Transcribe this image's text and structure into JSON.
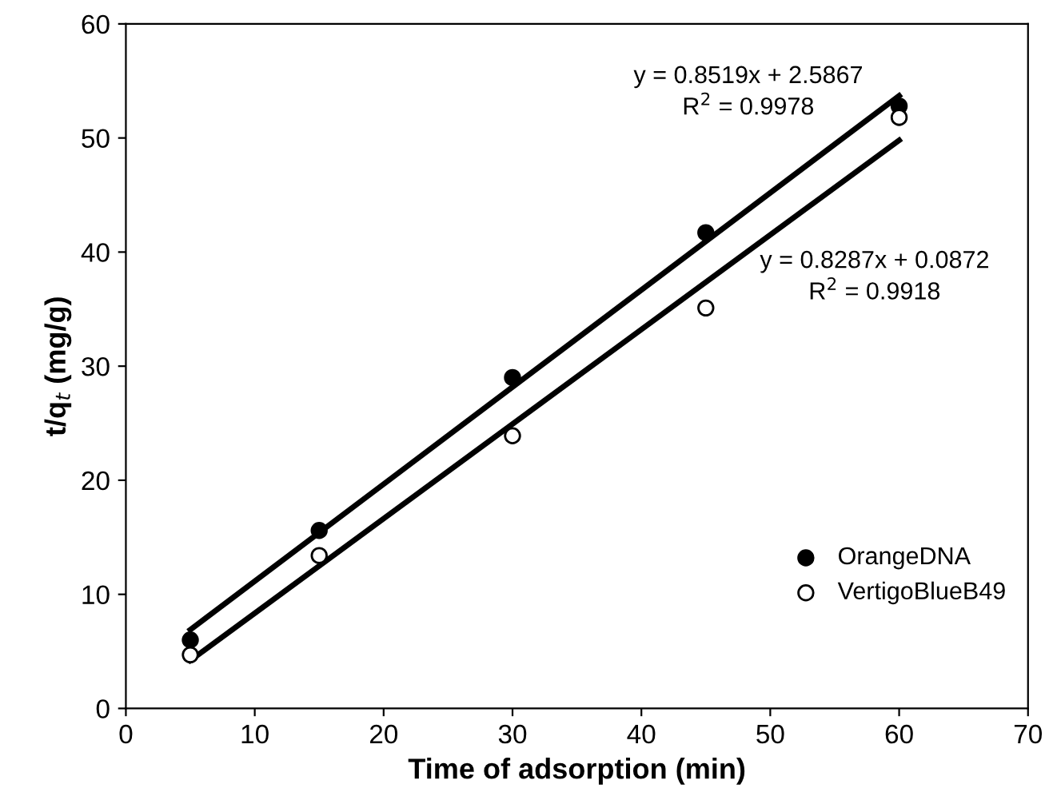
{
  "chart_data": {
    "type": "scatter",
    "xlabel": "Time of adsorption (min)",
    "ylabel": "t/q$_{t}$ (mg/g)",
    "xlim": [
      0,
      70
    ],
    "ylim": [
      0,
      60
    ],
    "xticks": [
      0,
      10,
      20,
      30,
      40,
      50,
      60,
      70
    ],
    "yticks": [
      0,
      10,
      20,
      30,
      40,
      50,
      60
    ],
    "grid": false,
    "legend": "bottom right",
    "marker": "circle",
    "series": [
      {
        "name": "OrangeDNA",
        "color": "#000000",
        "x": [
          5,
          15,
          30,
          45,
          60
        ],
        "values": [
          6.0,
          15.6,
          29.0,
          41.7,
          52.8
        ]
      },
      {
        "name": "VertigoBlueB49",
        "color": "#ffffff",
        "x": [
          5,
          15,
          30,
          45,
          60
        ],
        "values": [
          4.7,
          13.4,
          23.9,
          35.1,
          51.8
        ]
      },
      {
        "type": "line",
        "color": "#000000",
        "x": [
          5,
          60
        ],
        "values": [
          6.9,
          53.7
        ],
        "line_style": "solid",
        "marker": "none"
      },
      {
        "type": "line",
        "color": "#000000",
        "x": [
          5,
          60
        ],
        "values": [
          4.2,
          49.8
        ],
        "line_style": "solid",
        "marker": "none"
      }
    ],
    "annotations": [
      "y = 0.8519x + 2.5867\nR$^{2}$ = 0.9978",
      "y = 0.8287x + 0.0872\nR$^{2}$ = 0.9918"
    ]
  }
}
